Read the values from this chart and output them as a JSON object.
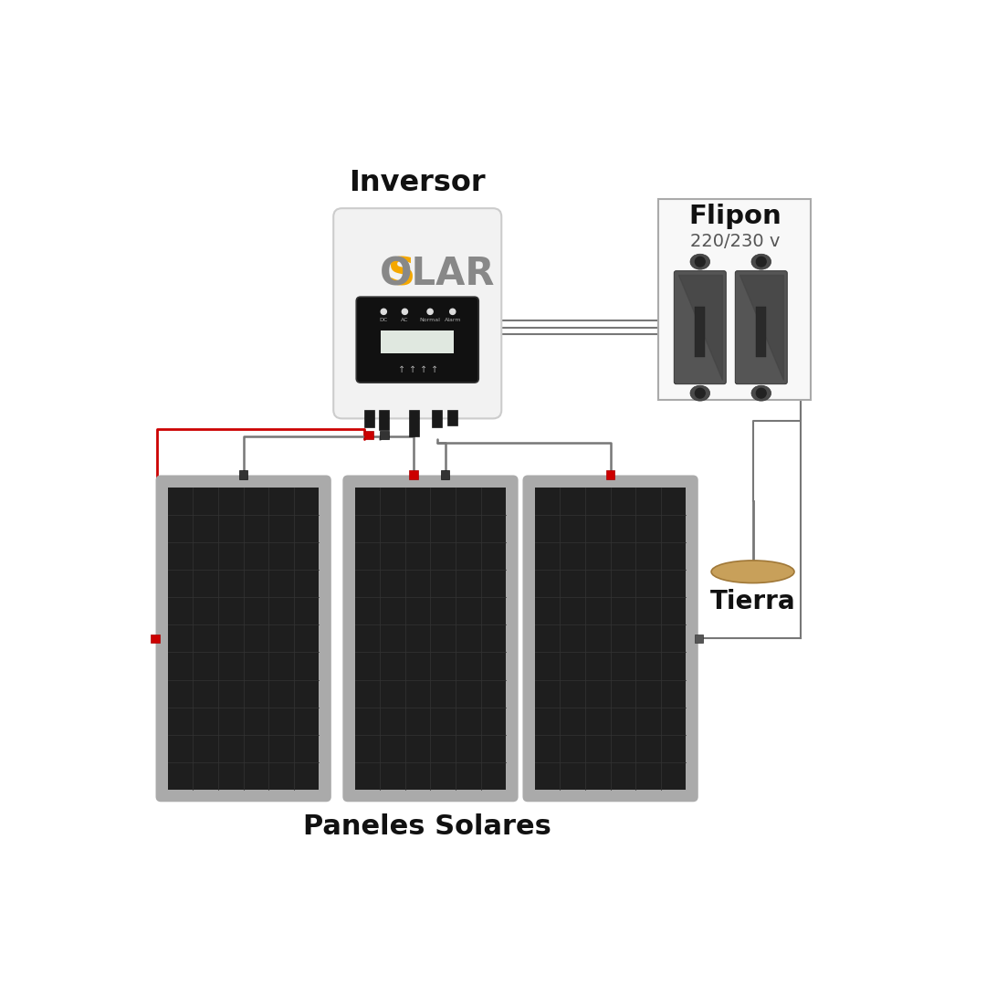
{
  "bg_color": "#ffffff",
  "inversor_label": "Inversor",
  "flipon_label": "Flipon",
  "flipon_sub": "220/230 v",
  "tierra_label": "Tierra",
  "paneles_label": "Paneles Solares",
  "inversor_body": "#f2f2f2",
  "inversor_border": "#cccccc",
  "display_bg": "#111111",
  "solar_s_color": "#f5a800",
  "solar_gray": "#888888",
  "flipon_bg": "#f8f8f8",
  "flipon_border": "#aaaaaa",
  "breaker_color": "#555555",
  "breaker_dark": "#3a3a3a",
  "breaker_nub": "#4a4a4a",
  "panel_frame": "#aaaaaa",
  "panel_bg": "#1e1e1e",
  "panel_grid": "#333333",
  "tierra_fill": "#c8a05a",
  "tierra_edge": "#a07838",
  "wire_red": "#cc0000",
  "wire_gray": "#777777",
  "wire_dark": "#1a1a1a",
  "conn_red": "#cc0000",
  "conn_dark": "#333333",
  "label_color": "#111111"
}
